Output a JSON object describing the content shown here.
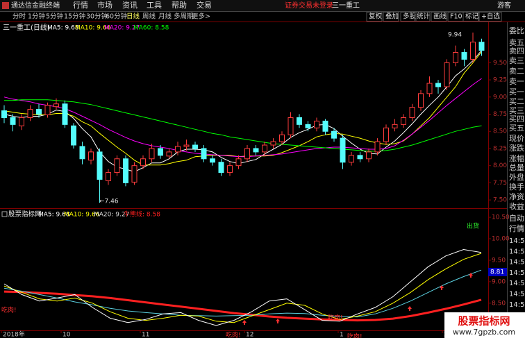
{
  "app": {
    "name": "通达信金融终端",
    "menu": [
      "行情",
      "市场",
      "资讯",
      "工具",
      "帮助",
      "交易"
    ],
    "login_status": "证券交易未登录",
    "stock": "三一重工",
    "user": "游客"
  },
  "toolbar": {
    "periods": [
      "分时",
      "1分钟",
      "5分钟",
      "15分钟",
      "30分钟",
      "60分钟",
      "日线",
      "周线",
      "月线",
      "多周期",
      "更多>"
    ],
    "buttons": [
      "复权",
      "叠加",
      "多股",
      "统计",
      "画线",
      "F10",
      "标记",
      "+自选"
    ]
  },
  "sidebar": {
    "quote_fields": [
      "委比",
      "卖五",
      "卖四",
      "卖三",
      "卖二",
      "卖一",
      "买一",
      "买二",
      "买三",
      "买四",
      "买五",
      "现价",
      "涨跌",
      "涨幅",
      "总量",
      "外盘",
      "换手",
      "净资",
      "收益"
    ],
    "tabs": [
      "自动",
      "行情"
    ],
    "times": [
      "14:50",
      "14:50",
      "14:50",
      "14:50",
      "14:50",
      "14:50",
      "14:50",
      "14:50"
    ]
  },
  "chart_data": [
    {
      "type": "candlestick",
      "title": "三一重工(日线)",
      "high_label": "9.94",
      "low_label": "←7.46",
      "open": [
        8.8,
        8.7,
        8.58,
        8.7,
        8.82,
        8.74,
        8.86,
        8.9,
        8.58,
        8.28,
        8.08,
        8.2,
        7.78,
        7.9,
        8.1,
        7.76,
        8.0,
        8.1,
        8.25,
        8.14,
        8.2,
        8.28,
        8.3,
        8.25,
        8.1,
        8.05,
        7.9,
        8.0,
        8.1,
        8.25,
        8.2,
        8.3,
        8.35,
        8.45,
        8.7,
        8.6,
        8.55,
        8.65,
        8.5,
        8.4,
        8.05,
        8.15,
        8.1,
        8.2,
        8.35,
        8.55,
        8.6,
        8.7,
        8.85,
        9.05,
        9.2,
        9.15,
        9.5,
        9.65,
        9.55,
        9.8
      ],
      "high": [
        8.88,
        8.75,
        8.75,
        8.88,
        8.9,
        8.92,
        8.98,
        8.95,
        8.62,
        8.35,
        8.25,
        8.25,
        7.95,
        8.15,
        8.15,
        8.05,
        8.15,
        8.32,
        8.3,
        8.25,
        8.35,
        8.38,
        8.35,
        8.3,
        8.15,
        8.1,
        8.05,
        8.15,
        8.3,
        8.3,
        8.35,
        8.4,
        8.5,
        8.78,
        8.75,
        8.65,
        8.7,
        8.68,
        8.55,
        8.45,
        8.2,
        8.2,
        8.25,
        8.4,
        8.6,
        8.68,
        8.75,
        8.9,
        9.1,
        9.3,
        9.25,
        9.55,
        9.75,
        9.7,
        9.94,
        9.85
      ],
      "low": [
        8.62,
        8.5,
        8.52,
        8.65,
        8.7,
        8.7,
        8.82,
        8.55,
        8.25,
        8.02,
        8.02,
        7.46,
        7.72,
        7.85,
        7.7,
        7.72,
        7.95,
        8.05,
        8.1,
        8.1,
        8.15,
        8.22,
        8.2,
        8.05,
        8.0,
        7.85,
        7.85,
        7.95,
        8.05,
        8.15,
        8.15,
        8.25,
        8.3,
        8.4,
        8.55,
        8.5,
        8.5,
        8.45,
        8.35,
        7.95,
        8.0,
        8.05,
        8.05,
        8.15,
        8.3,
        8.5,
        8.55,
        8.65,
        8.8,
        9.0,
        9.05,
        9.1,
        9.45,
        9.45,
        9.5,
        9.6
      ],
      "close": [
        8.7,
        8.6,
        8.7,
        8.82,
        8.75,
        8.88,
        8.9,
        8.6,
        8.3,
        8.1,
        8.2,
        7.8,
        7.9,
        8.1,
        7.75,
        8.0,
        8.1,
        8.25,
        8.15,
        8.2,
        8.28,
        8.3,
        8.25,
        8.1,
        8.05,
        7.9,
        8.0,
        8.1,
        8.25,
        8.2,
        8.3,
        8.35,
        8.45,
        8.7,
        8.6,
        8.55,
        8.65,
        8.5,
        8.4,
        8.05,
        8.15,
        8.1,
        8.2,
        8.35,
        8.55,
        8.6,
        8.7,
        8.85,
        9.05,
        9.2,
        9.15,
        9.5,
        9.65,
        9.55,
        9.8,
        9.68
      ],
      "up_color": "#ff3c3c",
      "down_color": "#54fcfc",
      "series": [
        {
          "name": "MA5: 9.68",
          "color": "#ffffff",
          "values": [
            8.75,
            8.72,
            8.7,
            8.72,
            8.72,
            8.75,
            8.81,
            8.79,
            8.69,
            8.54,
            8.42,
            8.2,
            8.06,
            7.98,
            7.95,
            7.91,
            7.97,
            8.04,
            8.04,
            8.1,
            8.2,
            8.24,
            8.24,
            8.23,
            8.2,
            8.12,
            8.06,
            8.03,
            8.06,
            8.09,
            8.17,
            8.24,
            8.31,
            8.41,
            8.48,
            8.53,
            8.59,
            8.6,
            8.54,
            8.43,
            8.33,
            8.24,
            8.18,
            8.17,
            8.27,
            8.36,
            8.48,
            8.61,
            8.75,
            8.88,
            9.0,
            9.15,
            9.31,
            9.41,
            9.53,
            9.68
          ]
        },
        {
          "name": "MA10: 9.66",
          "color": "#ffff00",
          "values": [
            8.8,
            8.78,
            8.76,
            8.75,
            8.74,
            8.74,
            8.76,
            8.76,
            8.72,
            8.64,
            8.58,
            8.47,
            8.37,
            8.27,
            8.18,
            8.08,
            8.01,
            8.01,
            8.01,
            8.03,
            8.06,
            8.08,
            8.13,
            8.14,
            8.15,
            8.15,
            8.15,
            8.13,
            8.14,
            8.14,
            8.14,
            8.15,
            8.19,
            8.24,
            8.29,
            8.35,
            8.42,
            8.45,
            8.47,
            8.46,
            8.43,
            8.4,
            8.36,
            8.33,
            8.31,
            8.32,
            8.36,
            8.46,
            8.58,
            8.7,
            8.85,
            9.0,
            9.15,
            9.35,
            9.5,
            9.66
          ]
        },
        {
          "name": "MA20: 9.27",
          "color": "#ff00ff",
          "values": [
            9.0,
            8.97,
            8.95,
            8.93,
            8.9,
            8.88,
            8.86,
            8.83,
            8.78,
            8.72,
            8.66,
            8.6,
            8.53,
            8.47,
            8.41,
            8.36,
            8.32,
            8.29,
            8.27,
            8.25,
            8.22,
            8.2,
            8.18,
            8.17,
            8.16,
            8.15,
            8.14,
            8.13,
            8.13,
            8.14,
            8.15,
            8.16,
            8.17,
            8.19,
            8.21,
            8.23,
            8.25,
            8.26,
            8.27,
            8.27,
            8.26,
            8.25,
            8.24,
            8.24,
            8.25,
            8.29,
            8.37,
            8.46,
            8.56,
            8.66,
            8.77,
            8.88,
            8.98,
            9.08,
            9.18,
            9.27
          ]
        },
        {
          "name": "MA60: 8.58",
          "color": "#00ff00",
          "values": [
            8.95,
            8.95,
            8.96,
            8.96,
            8.96,
            8.96,
            8.95,
            8.94,
            8.93,
            8.91,
            8.89,
            8.86,
            8.83,
            8.8,
            8.77,
            8.74,
            8.71,
            8.68,
            8.65,
            8.62,
            8.59,
            8.56,
            8.53,
            8.5,
            8.47,
            8.45,
            8.42,
            8.4,
            8.38,
            8.36,
            8.34,
            8.32,
            8.31,
            8.3,
            8.29,
            8.28,
            8.27,
            8.26,
            8.25,
            8.24,
            8.23,
            8.22,
            8.21,
            8.21,
            8.22,
            8.24,
            8.27,
            8.3,
            8.34,
            8.38,
            8.42,
            8.46,
            8.5,
            8.53,
            8.56,
            8.58
          ]
        }
      ],
      "ylim": [
        7.4,
        10.05
      ],
      "yticks": [
        {
          "value": 7.5,
          "label": "7.50"
        },
        {
          "value": 7.75,
          "label": "7.75"
        },
        {
          "value": 8.0,
          "label": "8.00"
        },
        {
          "value": 8.25,
          "label": "8.25"
        },
        {
          "value": 8.5,
          "label": "8.50"
        },
        {
          "value": 8.75,
          "label": "8.75"
        },
        {
          "value": 9.0,
          "label": "9.00"
        },
        {
          "value": 9.25,
          "label": "9.25"
        },
        {
          "value": 9.5,
          "label": "9.50"
        }
      ]
    },
    {
      "type": "line",
      "title": "股票指标网",
      "marker_label": "8.81",
      "series": [
        {
          "name": "MA5: 9.68",
          "color": "#ffffff",
          "width": 1,
          "values": [
            8.95,
            8.7,
            8.55,
            8.62,
            8.7,
            8.4,
            8.15,
            8.05,
            8.12,
            8.25,
            8.28,
            8.1,
            7.98,
            8.1,
            8.3,
            8.55,
            8.6,
            8.35,
            8.1,
            8.08,
            8.25,
            8.4,
            8.65,
            9.0,
            9.35,
            9.6,
            9.75,
            9.68
          ]
        },
        {
          "name": "MA10: 9.66",
          "color": "#ffff00",
          "width": 1,
          "values": [
            8.9,
            8.75,
            8.6,
            8.55,
            8.62,
            8.5,
            8.3,
            8.15,
            8.1,
            8.15,
            8.22,
            8.2,
            8.08,
            8.05,
            8.2,
            8.35,
            8.5,
            8.45,
            8.25,
            8.12,
            8.2,
            8.3,
            8.5,
            8.75,
            9.05,
            9.3,
            9.52,
            9.66
          ]
        },
        {
          "name": "MA20: 9.27",
          "color": "#5ad0e0",
          "width": 1,
          "values": [
            8.85,
            8.78,
            8.7,
            8.62,
            8.53,
            8.46,
            8.38,
            8.32,
            8.28,
            8.25,
            8.22,
            8.21,
            8.2,
            8.21,
            8.22,
            8.25,
            8.27,
            8.26,
            8.22,
            8.19,
            8.18,
            8.25,
            8.38,
            8.55,
            8.75,
            8.95,
            9.12,
            9.27
          ]
        },
        {
          "name": "牛熊线: 8.58",
          "color": "#ff2020",
          "width": 3,
          "values": [
            8.77,
            8.76,
            8.74,
            8.72,
            8.69,
            8.66,
            8.62,
            8.57,
            8.52,
            8.47,
            8.42,
            8.37,
            8.32,
            8.27,
            8.23,
            8.19,
            8.16,
            8.14,
            8.12,
            8.11,
            8.1,
            8.11,
            8.14,
            8.2,
            8.28,
            8.37,
            8.47,
            8.58
          ]
        }
      ],
      "annotations": [
        "出货",
        "吃肉!",
        "吃肉!",
        "吃肉!",
        "吃肉!"
      ],
      "x_labels": [
        "2018年",
        "10",
        "11",
        "12",
        "1",
        "2"
      ],
      "ylim": [
        7.77,
        10.63
      ],
      "yticks": [
        {
          "value": 8.0,
          "label": "8.00"
        },
        {
          "value": 8.5,
          "label": "8.50"
        },
        {
          "value": 9.0,
          "label": "9.00"
        },
        {
          "value": 9.5,
          "label": "9.50"
        },
        {
          "value": 10.0,
          "label": "10.00"
        },
        {
          "value": 10.5,
          "label": "10.50"
        }
      ]
    }
  ],
  "watermark": {
    "title": "股票指标网",
    "url": "www.7gpzb.com"
  }
}
